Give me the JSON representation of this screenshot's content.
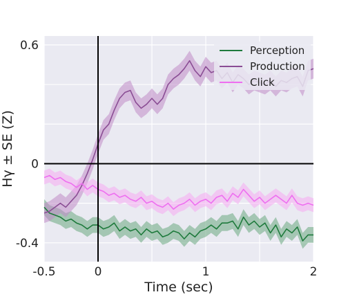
{
  "chart_data": {
    "type": "line",
    "xlabel": "Time (sec)",
    "ylabel": "Hγ ± SE (Z)",
    "xlim": [
      -0.5,
      2.0
    ],
    "ylim": [
      -0.495,
      0.645
    ],
    "x_ticks": [
      {
        "value": -0.5,
        "label": "-0.5"
      },
      {
        "value": 0,
        "label": "0"
      },
      {
        "value": 1,
        "label": "1"
      },
      {
        "value": 2,
        "label": "2"
      }
    ],
    "y_ticks": [
      {
        "value": 0.6,
        "label": "0.6"
      },
      {
        "value": 0,
        "label": "0"
      },
      {
        "value": -0.4,
        "label": "-0.4"
      }
    ],
    "grid": true,
    "legend_position": "top-right",
    "reference_lines": {
      "x": 0,
      "y": 0
    },
    "series": [
      {
        "name": "Perception",
        "color": "#1e7a3c",
        "band_color": "#6aa87f",
        "x": [
          -0.5,
          -0.45,
          -0.4,
          -0.35,
          -0.3,
          -0.25,
          -0.2,
          -0.15,
          -0.1,
          -0.05,
          0,
          0.05,
          0.1,
          0.15,
          0.2,
          0.25,
          0.3,
          0.35,
          0.4,
          0.45,
          0.5,
          0.55,
          0.6,
          0.65,
          0.7,
          0.75,
          0.8,
          0.85,
          0.9,
          0.95,
          1,
          1.05,
          1.1,
          1.15,
          1.2,
          1.25,
          1.3,
          1.35,
          1.4,
          1.45,
          1.5,
          1.55,
          1.6,
          1.65,
          1.7,
          1.75,
          1.8,
          1.85,
          1.9,
          1.95,
          2
        ],
        "y": [
          -0.22,
          -0.25,
          -0.26,
          -0.27,
          -0.29,
          -0.28,
          -0.3,
          -0.31,
          -0.33,
          -0.31,
          -0.31,
          -0.33,
          -0.32,
          -0.3,
          -0.34,
          -0.32,
          -0.34,
          -0.33,
          -0.36,
          -0.33,
          -0.35,
          -0.34,
          -0.37,
          -0.36,
          -0.34,
          -0.35,
          -0.38,
          -0.35,
          -0.37,
          -0.34,
          -0.33,
          -0.31,
          -0.33,
          -0.3,
          -0.3,
          -0.29,
          -0.33,
          -0.27,
          -0.31,
          -0.29,
          -0.32,
          -0.3,
          -0.35,
          -0.31,
          -0.37,
          -0.33,
          -0.35,
          -0.32,
          -0.39,
          -0.36,
          -0.36
        ],
        "se": 0.04
      },
      {
        "name": "Production",
        "color": "#8a4d94",
        "band_color": "#c08ac6",
        "x": [
          -0.5,
          -0.45,
          -0.4,
          -0.35,
          -0.3,
          -0.25,
          -0.2,
          -0.15,
          -0.1,
          -0.05,
          0,
          0.05,
          0.1,
          0.15,
          0.2,
          0.25,
          0.3,
          0.35,
          0.4,
          0.45,
          0.5,
          0.55,
          0.6,
          0.65,
          0.7,
          0.75,
          0.8,
          0.85,
          0.9,
          0.95,
          1,
          1.05,
          1.1,
          1.15,
          1.2,
          1.25,
          1.3,
          1.35,
          1.4,
          1.45,
          1.5,
          1.55,
          1.6,
          1.65,
          1.7,
          1.75,
          1.8,
          1.85,
          1.9,
          1.95,
          2
        ],
        "y": [
          -0.25,
          -0.24,
          -0.22,
          -0.2,
          -0.22,
          -0.19,
          -0.16,
          -0.11,
          -0.05,
          0.02,
          0.1,
          0.17,
          0.2,
          0.27,
          0.33,
          0.36,
          0.37,
          0.31,
          0.28,
          0.3,
          0.33,
          0.3,
          0.33,
          0.4,
          0.43,
          0.45,
          0.48,
          0.52,
          0.47,
          0.44,
          0.49,
          0.46,
          0.47,
          0.43,
          0.46,
          0.41,
          0.45,
          0.43,
          0.4,
          0.42,
          0.41,
          0.4,
          0.42,
          0.39,
          0.42,
          0.41,
          0.43,
          0.44,
          0.39,
          0.47,
          0.48
        ],
        "se": 0.05
      },
      {
        "name": "Click",
        "color": "#ee6ff0",
        "band_color": "#f6a9f3",
        "x": [
          -0.5,
          -0.45,
          -0.4,
          -0.35,
          -0.3,
          -0.25,
          -0.2,
          -0.15,
          -0.1,
          -0.05,
          0,
          0.05,
          0.1,
          0.15,
          0.2,
          0.25,
          0.3,
          0.35,
          0.4,
          0.45,
          0.5,
          0.55,
          0.6,
          0.65,
          0.7,
          0.75,
          0.8,
          0.85,
          0.9,
          0.95,
          1,
          1.05,
          1.1,
          1.15,
          1.2,
          1.25,
          1.3,
          1.35,
          1.4,
          1.45,
          1.5,
          1.55,
          1.6,
          1.65,
          1.7,
          1.75,
          1.8,
          1.85,
          1.9,
          1.95,
          2
        ],
        "y": [
          -0.07,
          -0.06,
          -0.08,
          -0.07,
          -0.09,
          -0.1,
          -0.12,
          -0.1,
          -0.13,
          -0.11,
          -0.13,
          -0.14,
          -0.16,
          -0.15,
          -0.17,
          -0.16,
          -0.18,
          -0.19,
          -0.17,
          -0.2,
          -0.19,
          -0.21,
          -0.22,
          -0.2,
          -0.23,
          -0.21,
          -0.2,
          -0.18,
          -0.21,
          -0.19,
          -0.18,
          -0.2,
          -0.17,
          -0.16,
          -0.19,
          -0.15,
          -0.17,
          -0.13,
          -0.16,
          -0.19,
          -0.17,
          -0.2,
          -0.18,
          -0.16,
          -0.18,
          -0.2,
          -0.16,
          -0.2,
          -0.21,
          -0.2,
          -0.21
        ],
        "se": 0.035
      }
    ]
  }
}
